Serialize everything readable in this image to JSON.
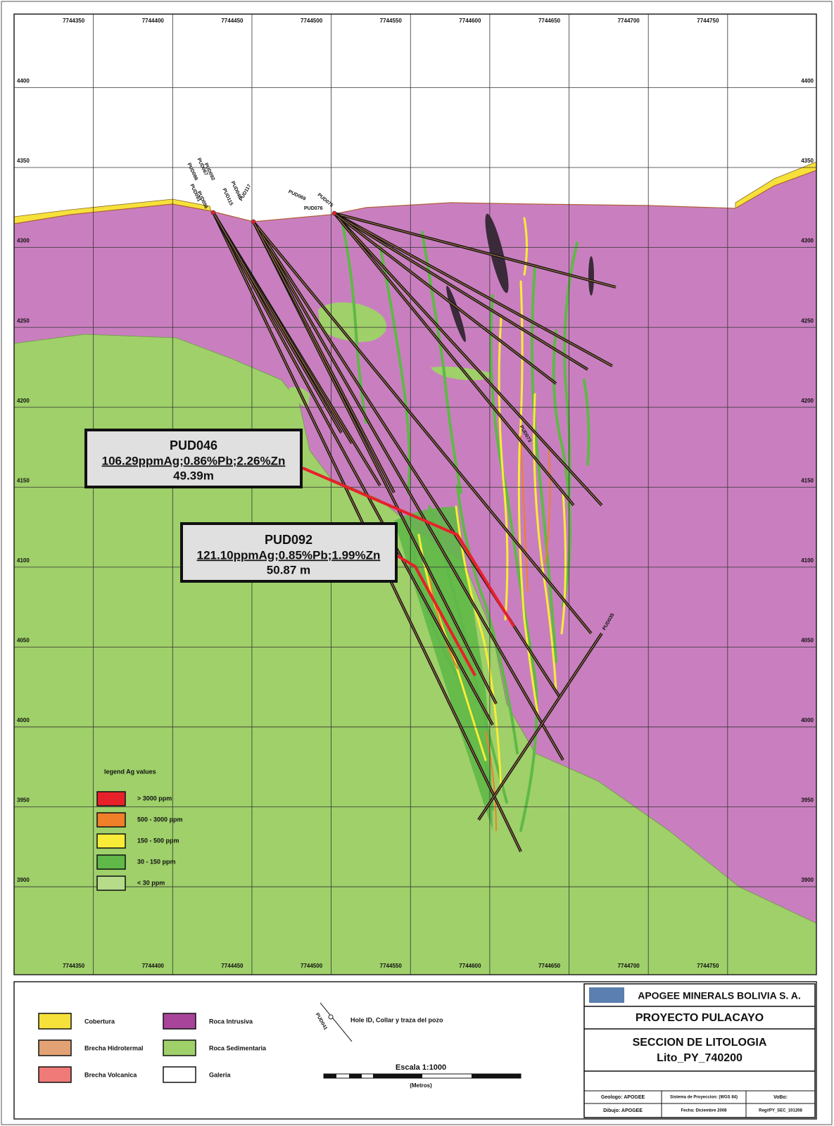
{
  "grid": {
    "xlim": [
      7744300,
      7744806
    ],
    "ylim": [
      3845,
      4446
    ],
    "xticks": [
      7744350,
      7744400,
      7744450,
      7744500,
      7744550,
      7744600,
      7744650,
      7744700,
      7744750
    ],
    "yticks": [
      4400,
      4350,
      4300,
      4250,
      4200,
      4150,
      4100,
      4050,
      4000,
      3950,
      3900
    ]
  },
  "callouts": [
    {
      "hole": "PUD046",
      "assay": "106.29ppmAg;0.86%Pb;2.26%Zn",
      "length": "49.39m"
    },
    {
      "hole": "PUD092",
      "assay": "121.10ppmAg;0.85%Pb;1.99%Zn",
      "length": "50.87 m"
    }
  ],
  "hole_labels": [
    "PUD067",
    "PUD092",
    "PUD086",
    "PUD091",
    "PUD056",
    "PUD046",
    "PUD115",
    "PUD117",
    "PUD069",
    "PUD075",
    "PUD076",
    "PUD073",
    "PUD035"
  ],
  "ag_legend": {
    "title": "legend Ag values",
    "items": [
      {
        "label": "> 3000 ppm",
        "color": "#e8202a"
      },
      {
        "label": "500 - 3000 ppm",
        "color": "#f07f2a"
      },
      {
        "label": "150 - 500 ppm",
        "color": "#f8ec38"
      },
      {
        "label": "30 - 150 ppm",
        "color": "#5fb848"
      },
      {
        "label": "< 30 ppm",
        "color": "#b6dc8a"
      }
    ]
  },
  "lithology_legend": [
    {
      "label": "Cobertura",
      "color": "#f6e13a"
    },
    {
      "label": "Brecha Hidrotermal",
      "color": "#e3a273"
    },
    {
      "label": "Brecha Volcanica",
      "color": "#f07a78"
    },
    {
      "label": "Roca Intrusiva",
      "color": "#a8449a"
    },
    {
      "label": "Roca Sedimentaria",
      "color": "#9fd06a"
    },
    {
      "label": "Galeria",
      "color": "#ffffff"
    }
  ],
  "hole_symbol": {
    "id": "PUD041",
    "label": "Hole ID, Collar y traza del pozo"
  },
  "scale": {
    "title": "Escala 1:1000",
    "unit": "(Metros)"
  },
  "title_block": {
    "company": "APOGEE MINERALS BOLIVIA S. A.",
    "project": "PROYECTO PULACAYO",
    "section": "SECCION DE LITOLOGIA",
    "code": "Lito_PY_740200",
    "geologist": "Geologo: APOGEE",
    "projection": "Sistema de Proyeccion: (WGS 84)",
    "approval": "VoBo:",
    "drawn": "Dibujo: APOGEE",
    "date": "Fecha: Diciembre 2008",
    "register": "Reg#PY_SEC_101208"
  }
}
